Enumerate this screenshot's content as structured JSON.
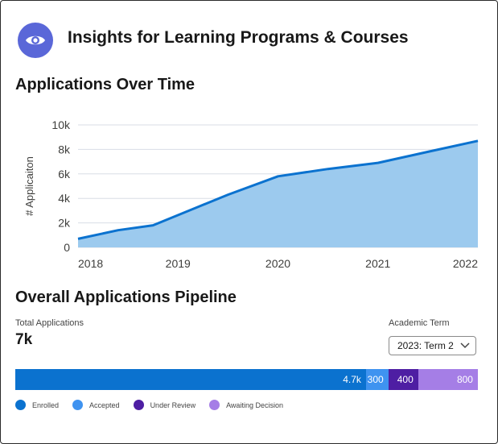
{
  "header": {
    "title": "Insights for Learning Programs & Courses",
    "icon": "eye-icon",
    "icon_color": "#5a67d8"
  },
  "chart_section": {
    "title": "Applications Over Time"
  },
  "chart_data": {
    "type": "area",
    "title": "Applications Over Time",
    "ylabel": "# Applicaiton",
    "xlabel": "",
    "x_ticks": [
      "2018",
      "2019",
      "2020",
      "2021",
      "2022"
    ],
    "y_ticks": [
      "0",
      "2k",
      "4k",
      "6k",
      "8k",
      "10k"
    ],
    "ylim": [
      0,
      10000
    ],
    "xlim": [
      2018,
      2022
    ],
    "grid": true,
    "series": [
      {
        "x": [
          2018,
          2018.4,
          2018.75,
          2019.5,
          2020,
          2020.5,
          2021,
          2021.5,
          2022
        ],
        "values": [
          700,
          1400,
          1800,
          4300,
          5800,
          6400,
          6900,
          7800,
          8700
        ]
      }
    ],
    "line_color": "#0b72cf",
    "fill_color": "#9ccaee"
  },
  "pipeline": {
    "title": "Overall Applications Pipeline",
    "total_label": "Total Applications",
    "total_value": "7k",
    "term_label": "Academic Term",
    "term_value": "2023: Term 2",
    "segments": [
      {
        "label": "4.7k",
        "value": 4700,
        "color": "#0b72cf"
      },
      {
        "label": "300",
        "value": 300,
        "color": "#3f93f0"
      },
      {
        "label": "400",
        "value": 400,
        "color": "#4e1ea3"
      },
      {
        "label": "800",
        "value": 800,
        "color": "#a57ee6"
      }
    ],
    "legend": [
      {
        "label": "Enrolled",
        "color": "#0b72cf"
      },
      {
        "label": "Accepted",
        "color": "#3f93f0"
      },
      {
        "label": "Under Review",
        "color": "#4e1ea3"
      },
      {
        "label": "Awaiting Decision",
        "color": "#a57ee6"
      }
    ]
  }
}
